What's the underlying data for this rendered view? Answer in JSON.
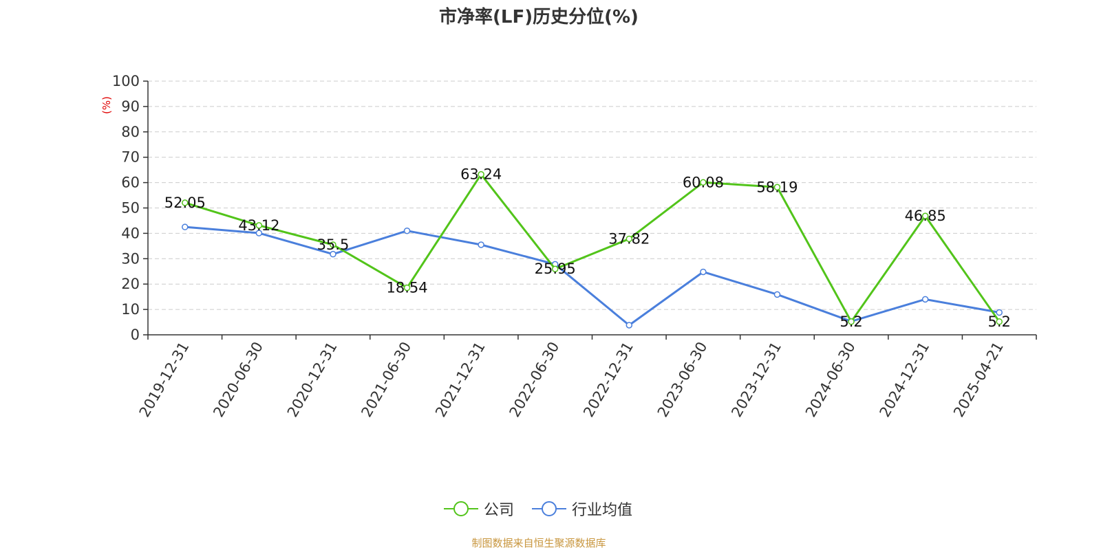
{
  "title": "市净率(LF)历史分位(%)",
  "source": "制图数据来自恒生聚源数据库",
  "chart_data": {
    "type": "line",
    "title": "市净率(LF)历史分位(%)",
    "ylabel": "(%)",
    "ylim": [
      0,
      100
    ],
    "yticks": [
      0,
      10,
      20,
      30,
      40,
      50,
      60,
      70,
      80,
      90,
      100
    ],
    "grid": true,
    "legend_position": "bottom",
    "categories": [
      "2019-12-31",
      "2020-06-30",
      "2020-12-31",
      "2021-06-30",
      "2021-12-31",
      "2022-06-30",
      "2022-12-31",
      "2023-06-30",
      "2023-12-31",
      "2024-06-30",
      "2024-12-31",
      "2025-04-21"
    ],
    "series": [
      {
        "name": "公司",
        "color": "#52c41a",
        "labeled": true,
        "values": [
          52.05,
          43.12,
          35.5,
          18.54,
          63.24,
          25.95,
          37.82,
          60.08,
          58.19,
          5.2,
          46.85,
          5.2
        ]
      },
      {
        "name": "行业均值",
        "color": "#4a7fdc",
        "labeled": false,
        "values": [
          42.5,
          40.1,
          31.8,
          41.0,
          35.5,
          27.8,
          3.8,
          24.8,
          15.9,
          5.3,
          14.0,
          8.8
        ]
      }
    ]
  }
}
